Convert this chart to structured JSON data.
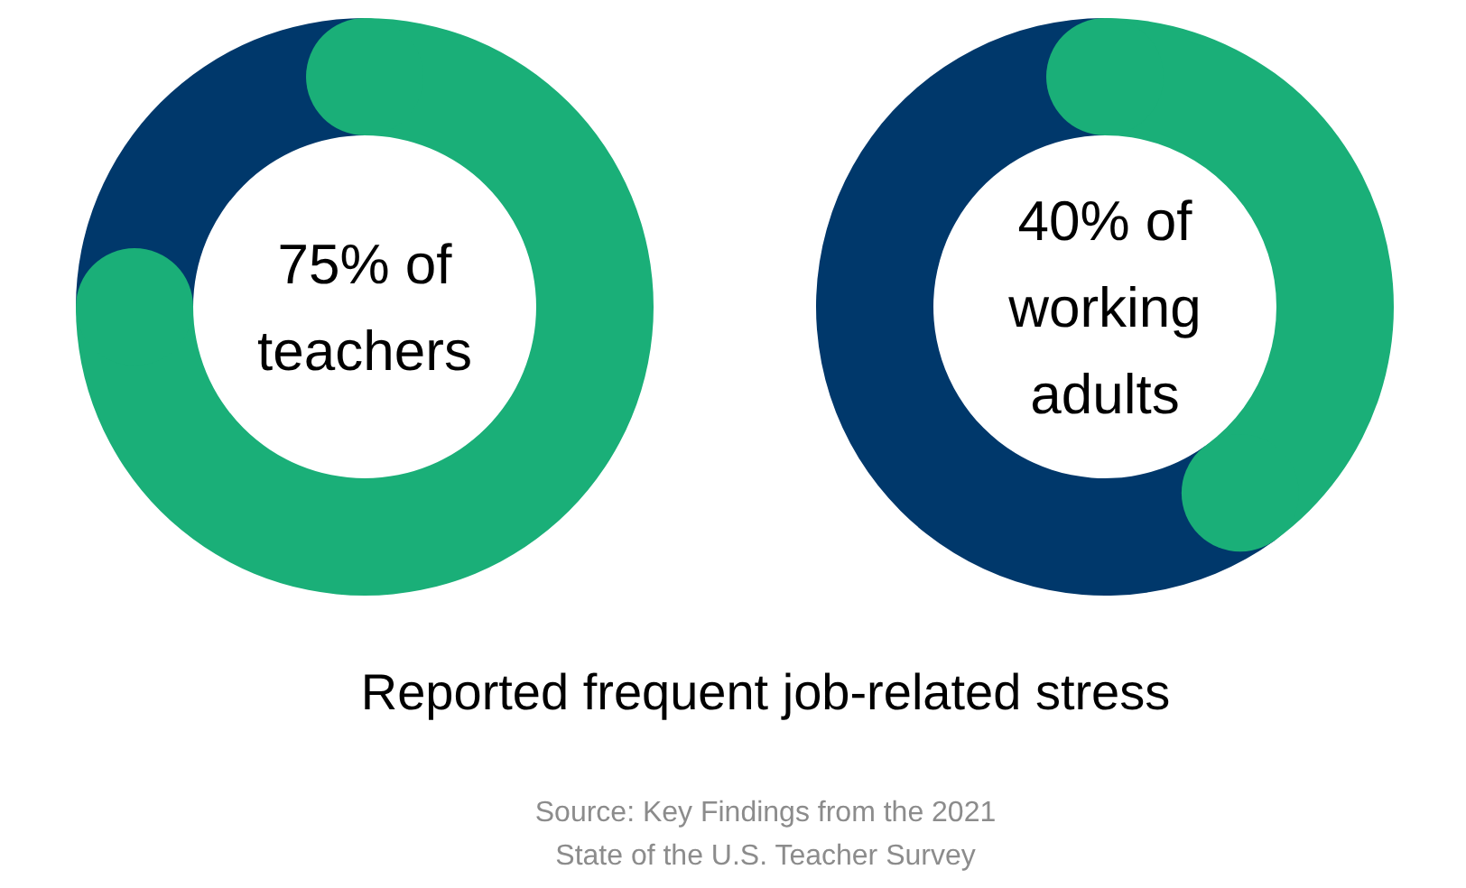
{
  "chart_data": [
    {
      "type": "donut",
      "title": "75% of teachers",
      "categories": [
        null,
        null
      ],
      "values": [
        75,
        25
      ],
      "colors": [
        "#1aaf78",
        "#00386b"
      ],
      "legend": false
    },
    {
      "type": "donut",
      "title": "40% of working adults",
      "categories": [
        null,
        null
      ],
      "values": [
        40,
        60
      ],
      "colors": [
        "#1aaf78",
        "#00386b"
      ],
      "legend": false
    },
    {
      "type": "other",
      "title": "Reported frequent job-related stress",
      "annotations": [
        "Source: Key Findings from the 2021 State of the U.S. Teacher Survey"
      ]
    }
  ]
}
